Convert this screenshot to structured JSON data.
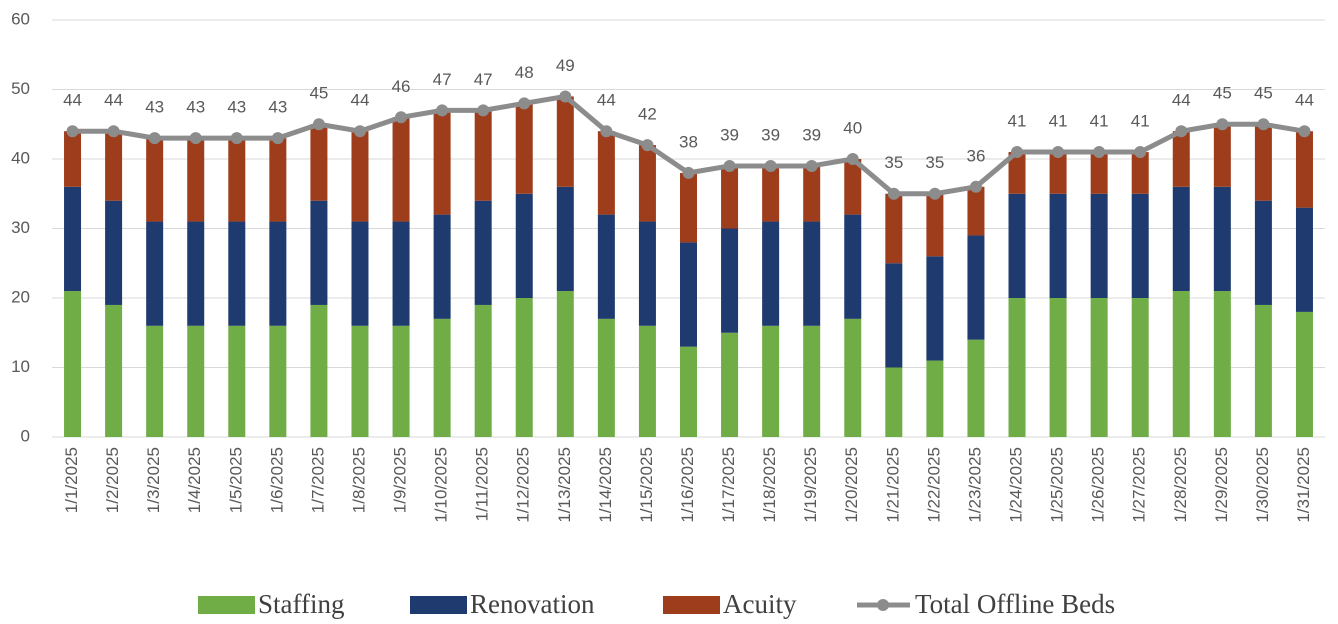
{
  "chart_data": {
    "type": "bar",
    "stacked": true,
    "categories": [
      "1/1/2025",
      "1/2/2025",
      "1/3/2025",
      "1/4/2025",
      "1/5/2025",
      "1/6/2025",
      "1/7/2025",
      "1/8/2025",
      "1/9/2025",
      "1/10/2025",
      "1/11/2025",
      "1/12/2025",
      "1/13/2025",
      "1/14/2025",
      "1/15/2025",
      "1/16/2025",
      "1/17/2025",
      "1/18/2025",
      "1/19/2025",
      "1/20/2025",
      "1/21/2025",
      "1/22/2025",
      "1/23/2025",
      "1/24/2025",
      "1/25/2025",
      "1/26/2025",
      "1/27/2025",
      "1/28/2025",
      "1/29/2025",
      "1/30/2025",
      "1/31/2025"
    ],
    "series": [
      {
        "name": "Staffing",
        "color": "#70ad47",
        "values": [
          21,
          19,
          16,
          16,
          16,
          16,
          19,
          16,
          16,
          17,
          19,
          20,
          21,
          17,
          16,
          13,
          15,
          16,
          16,
          17,
          10,
          11,
          14,
          20,
          20,
          20,
          20,
          21,
          21,
          19,
          18
        ]
      },
      {
        "name": "Renovation",
        "color": "#1f3a6e",
        "values": [
          15,
          15,
          15,
          15,
          15,
          15,
          15,
          15,
          15,
          15,
          15,
          15,
          15,
          15,
          15,
          15,
          15,
          15,
          15,
          15,
          15,
          15,
          15,
          15,
          15,
          15,
          15,
          15,
          15,
          15,
          15
        ]
      },
      {
        "name": "Acuity",
        "color": "#9e3d1c",
        "values": [
          8,
          10,
          12,
          12,
          12,
          12,
          11,
          13,
          15,
          15,
          13,
          13,
          13,
          12,
          11,
          10,
          9,
          8,
          8,
          8,
          10,
          9,
          7,
          6,
          6,
          6,
          6,
          8,
          9,
          11,
          11
        ]
      },
      {
        "name": "Total Offline Beds",
        "color": "#8c8c8c",
        "type": "line",
        "values": [
          44,
          44,
          43,
          43,
          43,
          43,
          45,
          44,
          46,
          47,
          47,
          48,
          49,
          44,
          42,
          38,
          39,
          39,
          39,
          40,
          35,
          35,
          36,
          41,
          41,
          41,
          41,
          44,
          45,
          45,
          44
        ]
      }
    ],
    "ylim": [
      0,
      60
    ],
    "yticks": [
      0,
      10,
      20,
      30,
      40,
      50,
      60
    ],
    "grid": true,
    "legend": "bottom"
  }
}
